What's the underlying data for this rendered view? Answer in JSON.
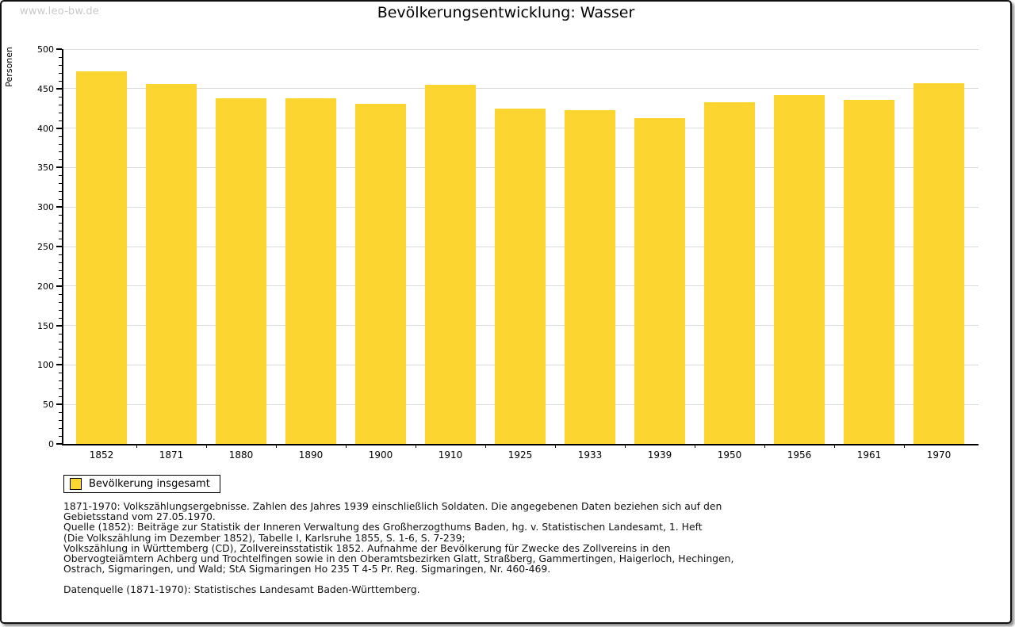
{
  "page": {
    "watermark": "www.leo-bw.de",
    "title": "Bevölkerungsentwicklung: Wasser"
  },
  "chart_data": {
    "type": "bar",
    "title": "Bevölkerungsentwicklung: Wasser",
    "ylabel": "Personen",
    "xlabel": "",
    "ylim": [
      0,
      500
    ],
    "ytick_major_step": 50,
    "ytick_minor_step": 10,
    "grid": true,
    "legend_position": "bottom-left",
    "bar_color": "#FDD531",
    "gridline_color": "#dcdcdc",
    "categories": [
      "1852",
      "1871",
      "1880",
      "1890",
      "1900",
      "1910",
      "1925",
      "1933",
      "1939",
      "1950",
      "1956",
      "1961",
      "1970"
    ],
    "series": [
      {
        "name": "Bevölkerung insgesamt",
        "values": [
          472,
          456,
          438,
          438,
          431,
          455,
          425,
          423,
          413,
          433,
          442,
          436,
          457
        ]
      }
    ]
  },
  "legend": {
    "label": "Bevölkerung insgesamt",
    "swatch_color": "#FDD531"
  },
  "footnotes": {
    "lines": [
      "1871-1970: Volkszählungsergebnisse. Zahlen des Jahres 1939 einschließlich Soldaten. Die angegebenen Daten beziehen sich auf den",
      "Gebietsstand vom 27.05.1970.",
      "Quelle (1852): Beiträge zur Statistik der Inneren Verwaltung des Großherzogthums Baden, hg. v. Statistischen Landesamt, 1. Heft",
      "(Die Volkszählung im Dezember 1852), Tabelle I, Karlsruhe 1855, S. 1-6, S. 7-239;",
      "Volkszählung in Württemberg (CD), Zollvereinsstatistik 1852. Aufnahme der Bevölkerung für Zwecke des Zollvereins in den",
      "Obervogteiämtern Achberg und Trochtelfingen sowie in den Oberamtsbezirken Glatt, Straßberg, Gammertingen, Haigerloch, Hechingen,",
      "Ostrach, Sigmaringen, und Wald; StA Sigmaringen Ho 235 T 4-5 Pr. Reg. Sigmaringen, Nr. 460-469."
    ],
    "datasource": "Datenquelle (1871-1970): Statistisches Landesamt Baden-Württemberg."
  }
}
